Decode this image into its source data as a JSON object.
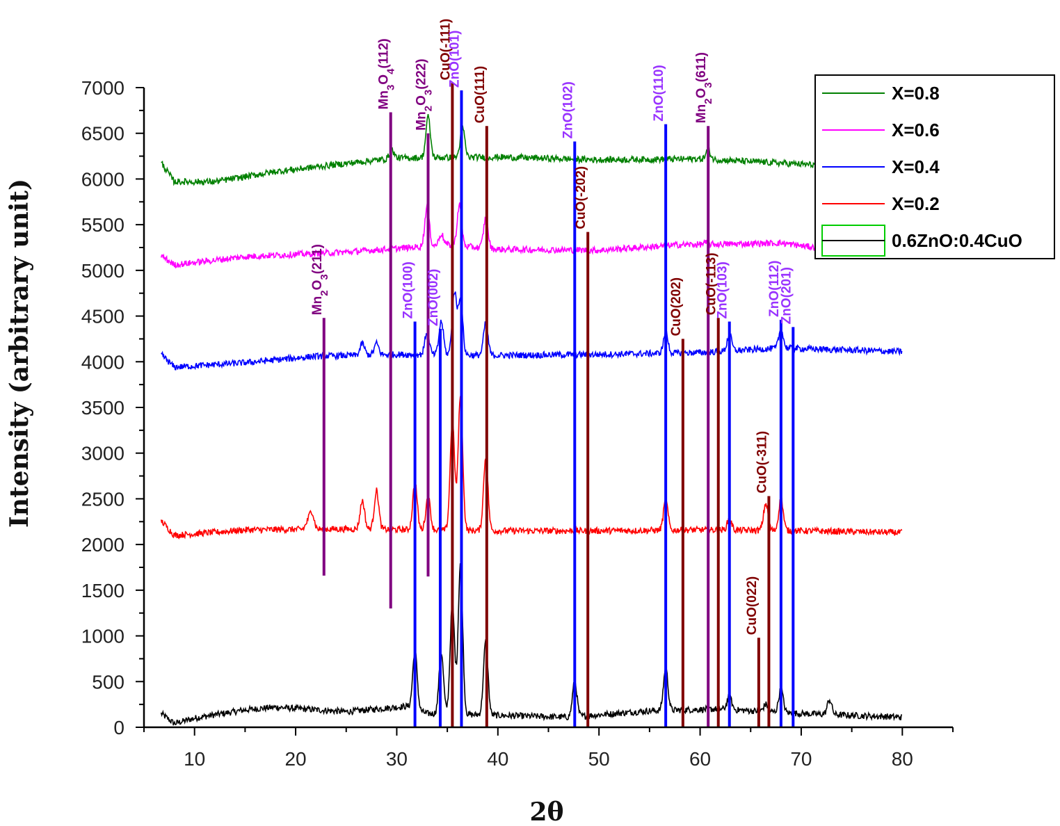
{
  "chart_data": {
    "type": "line",
    "title": "",
    "xlabel": "2θ",
    "ylabel": "Intensity (arbitrary unit)",
    "xlim": [
      5,
      85
    ],
    "ylim": [
      0,
      7000
    ],
    "xticks": [
      10,
      20,
      30,
      40,
      50,
      60,
      70,
      80
    ],
    "yticks": [
      0,
      500,
      1000,
      1500,
      2000,
      2500,
      3000,
      3500,
      4000,
      4500,
      5000,
      5500,
      6000,
      6500,
      7000
    ],
    "grid": false,
    "legend_position": "top-right",
    "series": [
      {
        "name": "0.6ZnO:0.4CuO",
        "color": "#000000",
        "baseline": [
          [
            6.7,
            150
          ],
          [
            8,
            40
          ],
          [
            10,
            100
          ],
          [
            15,
            190
          ],
          [
            18,
            220
          ],
          [
            25,
            170
          ],
          [
            31,
            230
          ],
          [
            33,
            150
          ],
          [
            40,
            130
          ],
          [
            47,
            110
          ],
          [
            55,
            180
          ],
          [
            62,
            200
          ],
          [
            70,
            150
          ],
          [
            80,
            110
          ]
        ],
        "peaks": [
          [
            31.8,
            840
          ],
          [
            34.4,
            820
          ],
          [
            35.5,
            1350
          ],
          [
            36.3,
            1800
          ],
          [
            38.8,
            940
          ],
          [
            47.6,
            500
          ],
          [
            56.6,
            650
          ],
          [
            62.9,
            340
          ],
          [
            66.5,
            250
          ],
          [
            68.0,
            420
          ],
          [
            72.8,
            300
          ]
        ]
      },
      {
        "name": "X=0.2",
        "color": "#ff0000",
        "baseline": [
          [
            6.7,
            2260
          ],
          [
            8,
            2100
          ],
          [
            15,
            2160
          ],
          [
            25,
            2170
          ],
          [
            40,
            2150
          ],
          [
            50,
            2150
          ],
          [
            60,
            2160
          ],
          [
            70,
            2150
          ],
          [
            80,
            2130
          ]
        ],
        "peaks": [
          [
            21.2,
            2240
          ],
          [
            21.6,
            2350
          ],
          [
            26.6,
            2480
          ],
          [
            28.0,
            2590
          ],
          [
            31.8,
            2680
          ],
          [
            33.1,
            2530
          ],
          [
            35.5,
            3350
          ],
          [
            36.3,
            3650
          ],
          [
            38.8,
            2950
          ],
          [
            56.6,
            2480
          ],
          [
            62.9,
            2280
          ],
          [
            66.5,
            2450
          ],
          [
            68.0,
            2500
          ]
        ]
      },
      {
        "name": "X=0.4",
        "color": "#0000ff",
        "baseline": [
          [
            6.7,
            4080
          ],
          [
            8,
            3940
          ],
          [
            15,
            3990
          ],
          [
            22,
            4060
          ],
          [
            30,
            4080
          ],
          [
            40,
            4070
          ],
          [
            50,
            4080
          ],
          [
            60,
            4100
          ],
          [
            68,
            4150
          ],
          [
            80,
            4110
          ]
        ],
        "peaks": [
          [
            26.6,
            4200
          ],
          [
            28.0,
            4200
          ],
          [
            33.0,
            4330
          ],
          [
            34.4,
            4440
          ],
          [
            35.7,
            4760
          ],
          [
            36.3,
            4700
          ],
          [
            38.8,
            4420
          ],
          [
            56.6,
            4320
          ],
          [
            62.9,
            4300
          ],
          [
            68.0,
            4350
          ]
        ]
      },
      {
        "name": "X=0.6",
        "color": "#ff00ff",
        "baseline": [
          [
            6.7,
            5160
          ],
          [
            8,
            5060
          ],
          [
            15,
            5150
          ],
          [
            25,
            5200
          ],
          [
            35,
            5280
          ],
          [
            40,
            5230
          ],
          [
            50,
            5220
          ],
          [
            58,
            5280
          ],
          [
            64,
            5290
          ],
          [
            68,
            5300
          ],
          [
            72,
            5240
          ]
        ],
        "peaks": [
          [
            33.0,
            5700
          ],
          [
            34.4,
            5400
          ],
          [
            36.2,
            5720
          ],
          [
            38.8,
            5570
          ],
          [
            60.5,
            5300
          ]
        ]
      },
      {
        "name": "X=0.8",
        "color": "#008000",
        "baseline": [
          [
            6.7,
            6180
          ],
          [
            8,
            5970
          ],
          [
            12,
            5970
          ],
          [
            18,
            6080
          ],
          [
            25,
            6170
          ],
          [
            30,
            6230
          ],
          [
            40,
            6240
          ],
          [
            50,
            6210
          ],
          [
            60,
            6220
          ],
          [
            72,
            6150
          ]
        ],
        "peaks": [
          [
            29.5,
            6320
          ],
          [
            33.1,
            6680
          ],
          [
            36.5,
            6570
          ],
          [
            60.8,
            6320
          ]
        ]
      }
    ],
    "reference_lines": [
      {
        "x": 22.8,
        "y_bottom": 1660,
        "y_top": 4480,
        "color": "#800080",
        "label_parts": [
          "Mn",
          "2",
          "O",
          "3",
          "(211)"
        ]
      },
      {
        "x": 29.4,
        "y_bottom": 1300,
        "y_top": 6730,
        "color": "#800080",
        "label_parts": [
          "Mn",
          "3",
          "O",
          "4",
          "(112)"
        ]
      },
      {
        "x": 33.1,
        "y_bottom": 1650,
        "y_top": 6500,
        "color": "#800080",
        "label_parts": [
          "Mn",
          "2",
          "O",
          "3",
          "(222)"
        ]
      },
      {
        "x": 35.5,
        "y_bottom": 0,
        "y_top": 7050,
        "color": "#800000",
        "label_parts": [
          "CuO(-111)"
        ]
      },
      {
        "x": 36.4,
        "y_bottom": 0,
        "y_top": 6970,
        "color": "#0000ff",
        "label_parts": [
          "ZnO(101)"
        ]
      },
      {
        "x": 38.9,
        "y_bottom": 0,
        "y_top": 6580,
        "color": "#800000",
        "label_parts": [
          "CuO(111)"
        ]
      },
      {
        "x": 31.8,
        "y_bottom": 0,
        "y_top": 4440,
        "color": "#0000ff",
        "label_parts": [
          "ZnO(100)"
        ]
      },
      {
        "x": 34.3,
        "y_bottom": 0,
        "y_top": 4360,
        "color": "#0000ff",
        "label_parts": [
          "ZnO(002)"
        ]
      },
      {
        "x": 47.6,
        "y_bottom": 0,
        "y_top": 6410,
        "color": "#0000ff",
        "label_parts": [
          "ZnO(102)"
        ]
      },
      {
        "x": 48.9,
        "y_bottom": 0,
        "y_top": 5420,
        "color": "#800000",
        "label_parts": [
          "CuO(-202)"
        ]
      },
      {
        "x": 56.6,
        "y_bottom": 0,
        "y_top": 6600,
        "color": "#0000ff",
        "label_parts": [
          "ZnO(110)"
        ]
      },
      {
        "x": 58.3,
        "y_bottom": 0,
        "y_top": 4250,
        "color": "#800000",
        "label_parts": [
          "CuO(202)"
        ]
      },
      {
        "x": 60.8,
        "y_bottom": 0,
        "y_top": 6580,
        "color": "#800080",
        "label_parts": [
          "Mn",
          "2",
          "O",
          "3",
          "(611)"
        ]
      },
      {
        "x": 61.8,
        "y_bottom": 0,
        "y_top": 4480,
        "color": "#800000",
        "label_parts": [
          "CuO(-113)"
        ]
      },
      {
        "x": 62.9,
        "y_bottom": 0,
        "y_top": 4440,
        "color": "#0000ff",
        "label_parts": [
          "ZnO(103)"
        ]
      },
      {
        "x": 65.8,
        "y_bottom": 0,
        "y_top": 980,
        "color": "#800000",
        "label_parts": [
          "CuO(022)"
        ]
      },
      {
        "x": 66.8,
        "y_bottom": 0,
        "y_top": 2530,
        "color": "#800000",
        "label_parts": [
          "CuO(-311)"
        ]
      },
      {
        "x": 68.0,
        "y_bottom": 0,
        "y_top": 4460,
        "color": "#0000ff",
        "label_parts": [
          "ZnO(112)"
        ]
      },
      {
        "x": 69.2,
        "y_bottom": 0,
        "y_top": 4380,
        "color": "#0000ff",
        "label_parts": [
          "ZnO(201)"
        ]
      }
    ],
    "legend": [
      {
        "label": "X=0.8",
        "color": "#008000"
      },
      {
        "label": "X=0.6",
        "color": "#ff00ff"
      },
      {
        "label": "X=0.4",
        "color": "#0000ff"
      },
      {
        "label": "X=0.2",
        "color": "#ff0000"
      },
      {
        "label": "0.6ZnO:0.4CuO",
        "color": "#000000"
      }
    ]
  }
}
